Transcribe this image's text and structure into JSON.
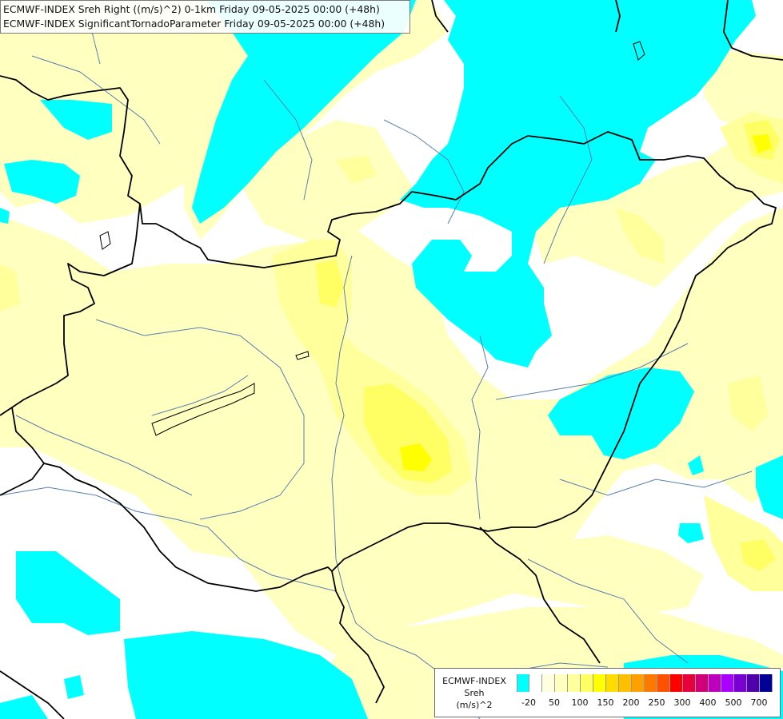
{
  "titles": {
    "line1": "ECMWF-INDEX Sreh Right ((m/s)^2) 0-1km Friday 09-05-2025 00:00 (+48h)",
    "line2": "ECMWF-INDEX SignificantTornadoParameter Friday 09-05-2025 00:00 (+48h)"
  },
  "legend": {
    "source": "ECMWF-INDEX",
    "variable": "Sreh",
    "unit": "(m/s)^2",
    "colors": [
      "#00ffff",
      "#ffffff",
      "#ffffe0",
      "#ffffc0",
      "#ffff9c",
      "#ffff64",
      "#ffff00",
      "#ffdc00",
      "#ffbe00",
      "#ffa000",
      "#ff7800",
      "#ff5000",
      "#ff0000",
      "#e6003c",
      "#d20078",
      "#be00be",
      "#aa00ff",
      "#7800d2",
      "#5000aa",
      "#000096"
    ],
    "ticks": [
      "-20",
      "50",
      "100",
      "150",
      "200",
      "250",
      "300",
      "400",
      "500",
      "700"
    ]
  },
  "field_colors": {
    "cyan": "#00ffff",
    "light_yellow": "#ffffc0",
    "yellow": "#ffff9c",
    "bright_yellow": "#ffff64",
    "core_yellow": "#ffff00",
    "river": "#5a7fb0",
    "border": "#000000"
  }
}
